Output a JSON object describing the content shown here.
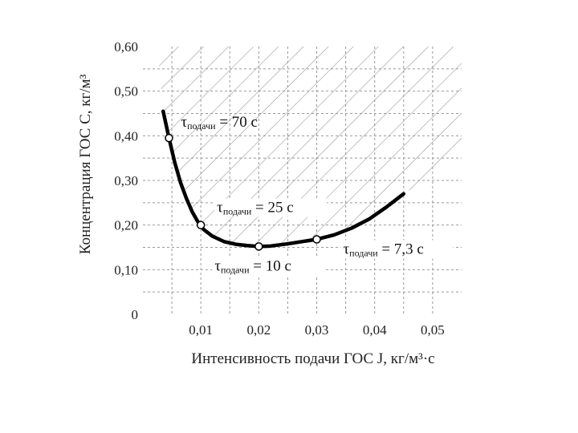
{
  "chart_data": {
    "type": "line",
    "xlabel": "Интенсивность подачи ГОС J, кг/м³·с",
    "ylabel": "Концентрация ГОС C, кг/м³",
    "xlim": [
      0,
      0.055
    ],
    "ylim": [
      0,
      0.6
    ],
    "x_ticks": [
      "0,01",
      "0,02",
      "0,03",
      "0,04",
      "0,05"
    ],
    "y_ticks": [
      "0",
      "0,10",
      "0,20",
      "0,30",
      "0,40",
      "0,50",
      "0,60"
    ],
    "x_tick_values": [
      0.01,
      0.02,
      0.03,
      0.04,
      0.05
    ],
    "y_tick_values": [
      0,
      0.1,
      0.2,
      0.3,
      0.4,
      0.5,
      0.6
    ],
    "grid": true,
    "hatched_region": "above curve",
    "curve": {
      "x": [
        0.0035,
        0.0045,
        0.0055,
        0.0065,
        0.0075,
        0.0085,
        0.0095,
        0.0105,
        0.012,
        0.014,
        0.016,
        0.018,
        0.02,
        0.022,
        0.025,
        0.028,
        0.03,
        0.033,
        0.036,
        0.039,
        0.042,
        0.045
      ],
      "y": [
        0.455,
        0.395,
        0.34,
        0.295,
        0.26,
        0.23,
        0.207,
        0.19,
        0.175,
        0.163,
        0.157,
        0.154,
        0.152,
        0.153,
        0.158,
        0.164,
        0.168,
        0.178,
        0.193,
        0.213,
        0.24,
        0.27
      ]
    },
    "points": [
      {
        "x": 0.0045,
        "y": 0.395,
        "label_tau": "τ",
        "label_sub": "подачи",
        "label_rest": "= 70 с"
      },
      {
        "x": 0.01,
        "y": 0.2,
        "label_tau": "τ",
        "label_sub": "подачи",
        "label_rest": "= 25 с"
      },
      {
        "x": 0.02,
        "y": 0.152,
        "label_tau": "τ",
        "label_sub": "подачи",
        "label_rest": "= 10 с"
      },
      {
        "x": 0.03,
        "y": 0.168,
        "label_tau": "τ",
        "label_sub": "подачи",
        "label_rest": "= 7,3 с"
      }
    ],
    "colors": {
      "curve": "#000000",
      "grid": "#999999",
      "hatch": "#9a9a9a",
      "axis_text": "#222222"
    }
  }
}
